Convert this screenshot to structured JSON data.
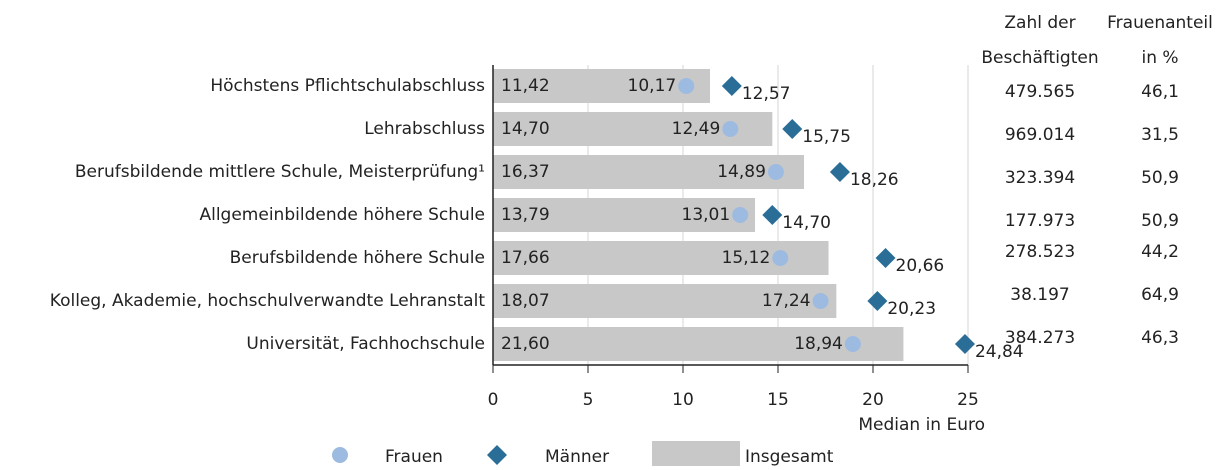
{
  "chart_data": {
    "type": "bar",
    "orientation": "horizontal",
    "categories": [
      "Höchstens Pflichtschulabschluss",
      "Lehrabschluss",
      "Berufsbildende mittlere Schule, Meisterprüfung¹",
      "Allgemeinbildende höhere Schule",
      "Berufsbildende höhere Schule",
      "Kolleg, Akademie, hochschulverwandte Lehranstalt",
      "Universität, Fachhochschule"
    ],
    "series": [
      {
        "name": "Insgesamt",
        "marker": "bar",
        "color": "#c8c8c8",
        "values": [
          11.42,
          14.7,
          16.37,
          13.79,
          17.66,
          18.07,
          21.6
        ],
        "value_labels": [
          "11,42",
          "14,70",
          "16,37",
          "13,79",
          "17,66",
          "18,07",
          "21,60"
        ]
      },
      {
        "name": "Frauen",
        "marker": "circle",
        "color": "#9dbbe0",
        "values": [
          10.17,
          12.49,
          14.89,
          13.01,
          15.12,
          17.24,
          18.94
        ],
        "value_labels": [
          "10,17",
          "12,49",
          "14,89",
          "13,01",
          "15,12",
          "17,24",
          "18,94"
        ]
      },
      {
        "name": "Männer",
        "marker": "diamond",
        "color": "#2a6e98",
        "values": [
          12.57,
          15.75,
          18.26,
          14.7,
          20.66,
          20.23,
          24.84
        ],
        "value_labels": [
          "12,57",
          "15,75",
          "18,26",
          "14,70",
          "20,66",
          "20,23",
          "24,84"
        ]
      }
    ],
    "legend_order": [
      1,
      2,
      0
    ],
    "xlim": [
      0,
      25
    ],
    "xticks": [
      0,
      5,
      10,
      15,
      20,
      25
    ],
    "xlabel": "Median in Euro",
    "grid": true,
    "columns": [
      {
        "header": [
          "Zahl der",
          "Beschäftigten"
        ],
        "values": [
          "479.565",
          "969.014",
          "323.394",
          "177.973",
          "278.523",
          "38.197",
          "384.273"
        ]
      },
      {
        "header": [
          "Frauenanteil",
          "in %"
        ],
        "values": [
          "46,1",
          "31,5",
          "50,9",
          "50,9",
          "44,2",
          "64,9",
          "46,3"
        ]
      }
    ]
  }
}
